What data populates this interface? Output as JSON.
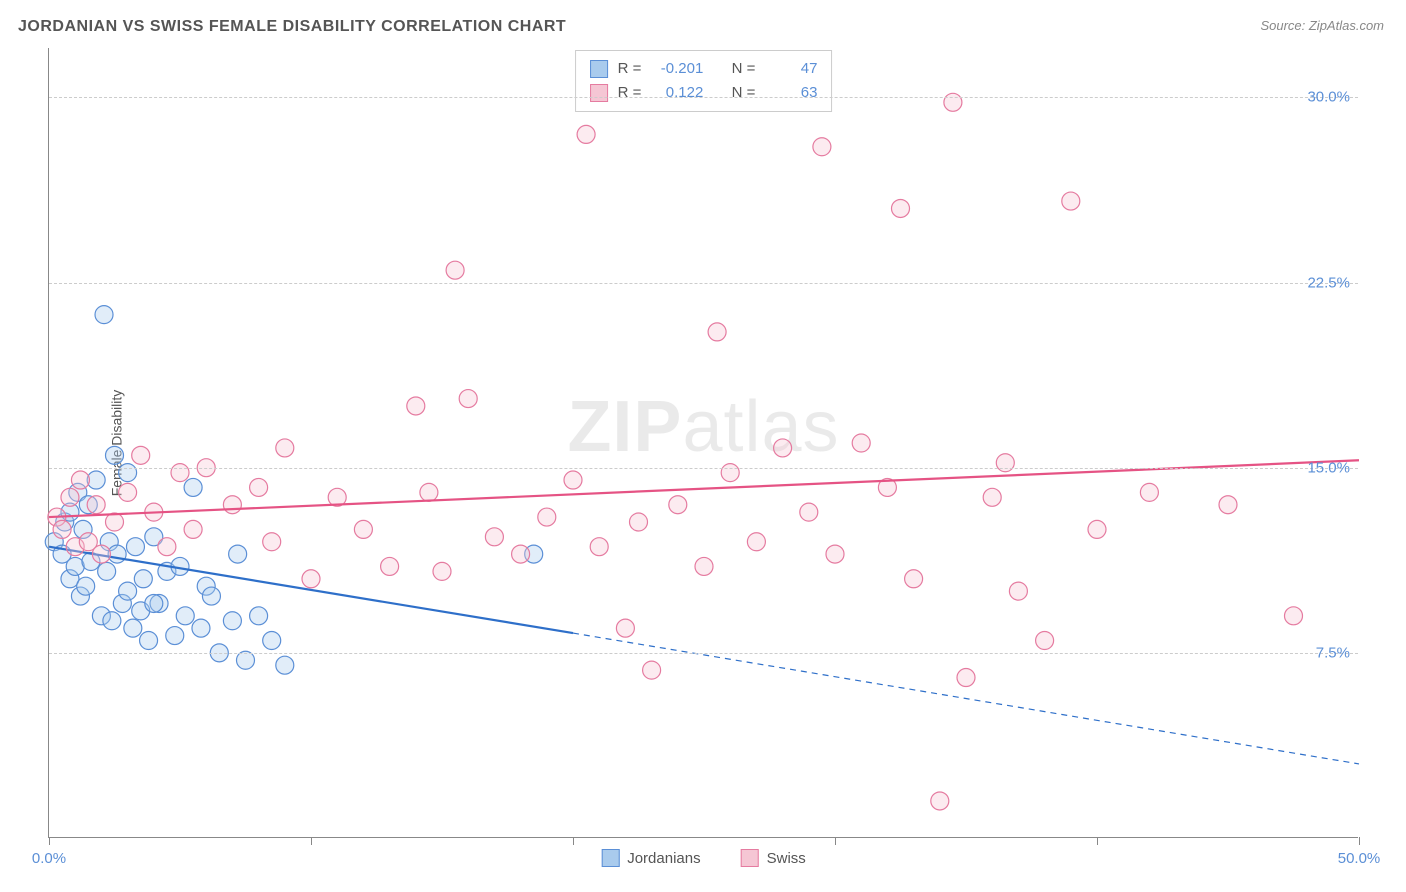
{
  "title": "JORDANIAN VS SWISS FEMALE DISABILITY CORRELATION CHART",
  "source": "Source: ZipAtlas.com",
  "watermark": "ZIPatlas",
  "ylabel": "Female Disability",
  "chart": {
    "type": "scatter",
    "xlim": [
      0,
      50
    ],
    "ylim": [
      0,
      32
    ],
    "x_ticks": [
      0,
      10,
      20,
      30,
      40,
      50
    ],
    "x_tick_labels": [
      "0.0%",
      "",
      "",
      "",
      "",
      "50.0%"
    ],
    "y_ticks": [
      7.5,
      15.0,
      22.5,
      30.0
    ],
    "y_tick_labels": [
      "7.5%",
      "15.0%",
      "22.5%",
      "30.0%"
    ],
    "grid_color": "#cccccc",
    "axis_color": "#888888",
    "background_color": "#ffffff",
    "marker_radius": 9,
    "marker_fill_opacity": 0.35,
    "marker_stroke_width": 1.2,
    "series": [
      {
        "name": "Jordanians",
        "color_fill": "#a9cbed",
        "color_stroke": "#5b8fd6",
        "r_value": "-0.201",
        "n_value": "47",
        "trend": {
          "x1": 0,
          "y1": 11.8,
          "x2_solid": 20,
          "y2_solid": 8.3,
          "x2_dash": 50,
          "y2_dash": 3.0,
          "color": "#2e6fc9",
          "width": 2.2
        },
        "points": [
          [
            0.2,
            12.0
          ],
          [
            0.5,
            11.5
          ],
          [
            0.6,
            12.8
          ],
          [
            0.8,
            10.5
          ],
          [
            0.8,
            13.2
          ],
          [
            1.0,
            11.0
          ],
          [
            1.1,
            14.0
          ],
          [
            1.2,
            9.8
          ],
          [
            1.3,
            12.5
          ],
          [
            1.4,
            10.2
          ],
          [
            1.5,
            13.5
          ],
          [
            1.6,
            11.2
          ],
          [
            1.8,
            14.5
          ],
          [
            2.0,
            9.0
          ],
          [
            2.1,
            21.2
          ],
          [
            2.2,
            10.8
          ],
          [
            2.3,
            12.0
          ],
          [
            2.4,
            8.8
          ],
          [
            2.5,
            15.5
          ],
          [
            2.6,
            11.5
          ],
          [
            2.8,
            9.5
          ],
          [
            3.0,
            10.0
          ],
          [
            3.0,
            14.8
          ],
          [
            3.2,
            8.5
          ],
          [
            3.3,
            11.8
          ],
          [
            3.5,
            9.2
          ],
          [
            3.6,
            10.5
          ],
          [
            3.8,
            8.0
          ],
          [
            4.0,
            12.2
          ],
          [
            4.2,
            9.5
          ],
          [
            4.5,
            10.8
          ],
          [
            4.8,
            8.2
          ],
          [
            5.0,
            11.0
          ],
          [
            5.2,
            9.0
          ],
          [
            5.5,
            14.2
          ],
          [
            5.8,
            8.5
          ],
          [
            6.0,
            10.2
          ],
          [
            6.2,
            9.8
          ],
          [
            6.5,
            7.5
          ],
          [
            7.0,
            8.8
          ],
          [
            7.2,
            11.5
          ],
          [
            7.5,
            7.2
          ],
          [
            8.0,
            9.0
          ],
          [
            8.5,
            8.0
          ],
          [
            9.0,
            7.0
          ],
          [
            18.5,
            11.5
          ],
          [
            4.0,
            9.5
          ]
        ]
      },
      {
        "name": "Swiss",
        "color_fill": "#f5c6d4",
        "color_stroke": "#e57ba0",
        "r_value": "0.122",
        "n_value": "63",
        "trend": {
          "x1": 0,
          "y1": 13.0,
          "x2_solid": 50,
          "y2_solid": 15.3,
          "x2_dash": 50,
          "y2_dash": 15.3,
          "color": "#e55384",
          "width": 2.2
        },
        "points": [
          [
            0.3,
            13.0
          ],
          [
            0.5,
            12.5
          ],
          [
            0.8,
            13.8
          ],
          [
            1.0,
            11.8
          ],
          [
            1.2,
            14.5
          ],
          [
            1.5,
            12.0
          ],
          [
            1.8,
            13.5
          ],
          [
            2.0,
            11.5
          ],
          [
            2.5,
            12.8
          ],
          [
            3.0,
            14.0
          ],
          [
            3.5,
            15.5
          ],
          [
            4.0,
            13.2
          ],
          [
            4.5,
            11.8
          ],
          [
            5.0,
            14.8
          ],
          [
            5.5,
            12.5
          ],
          [
            6.0,
            15.0
          ],
          [
            7.0,
            13.5
          ],
          [
            8.0,
            14.2
          ],
          [
            8.5,
            12.0
          ],
          [
            9.0,
            15.8
          ],
          [
            10.0,
            10.5
          ],
          [
            11.0,
            13.8
          ],
          [
            12.0,
            12.5
          ],
          [
            13.0,
            11.0
          ],
          [
            14.0,
            17.5
          ],
          [
            14.5,
            14.0
          ],
          [
            15.0,
            10.8
          ],
          [
            15.5,
            23.0
          ],
          [
            16.0,
            17.8
          ],
          [
            17.0,
            12.2
          ],
          [
            18.0,
            11.5
          ],
          [
            19.0,
            13.0
          ],
          [
            20.0,
            14.5
          ],
          [
            20.5,
            28.5
          ],
          [
            21.0,
            11.8
          ],
          [
            22.0,
            8.5
          ],
          [
            22.5,
            12.8
          ],
          [
            23.0,
            6.8
          ],
          [
            24.0,
            13.5
          ],
          [
            25.0,
            11.0
          ],
          [
            25.5,
            20.5
          ],
          [
            26.0,
            14.8
          ],
          [
            27.0,
            12.0
          ],
          [
            28.0,
            15.8
          ],
          [
            29.0,
            13.2
          ],
          [
            29.5,
            28.0
          ],
          [
            30.0,
            11.5
          ],
          [
            31.0,
            16.0
          ],
          [
            32.0,
            14.2
          ],
          [
            32.5,
            25.5
          ],
          [
            33.0,
            10.5
          ],
          [
            34.0,
            1.5
          ],
          [
            34.5,
            29.8
          ],
          [
            35.0,
            6.5
          ],
          [
            36.0,
            13.8
          ],
          [
            37.0,
            10.0
          ],
          [
            38.0,
            8.0
          ],
          [
            39.0,
            25.8
          ],
          [
            40.0,
            12.5
          ],
          [
            42.0,
            14.0
          ],
          [
            45.0,
            13.5
          ],
          [
            47.5,
            9.0
          ],
          [
            36.5,
            15.2
          ]
        ]
      }
    ]
  },
  "stats_box": {
    "r_label": "R =",
    "n_label": "N ="
  },
  "legend": {
    "items": [
      "Jordanians",
      "Swiss"
    ]
  }
}
